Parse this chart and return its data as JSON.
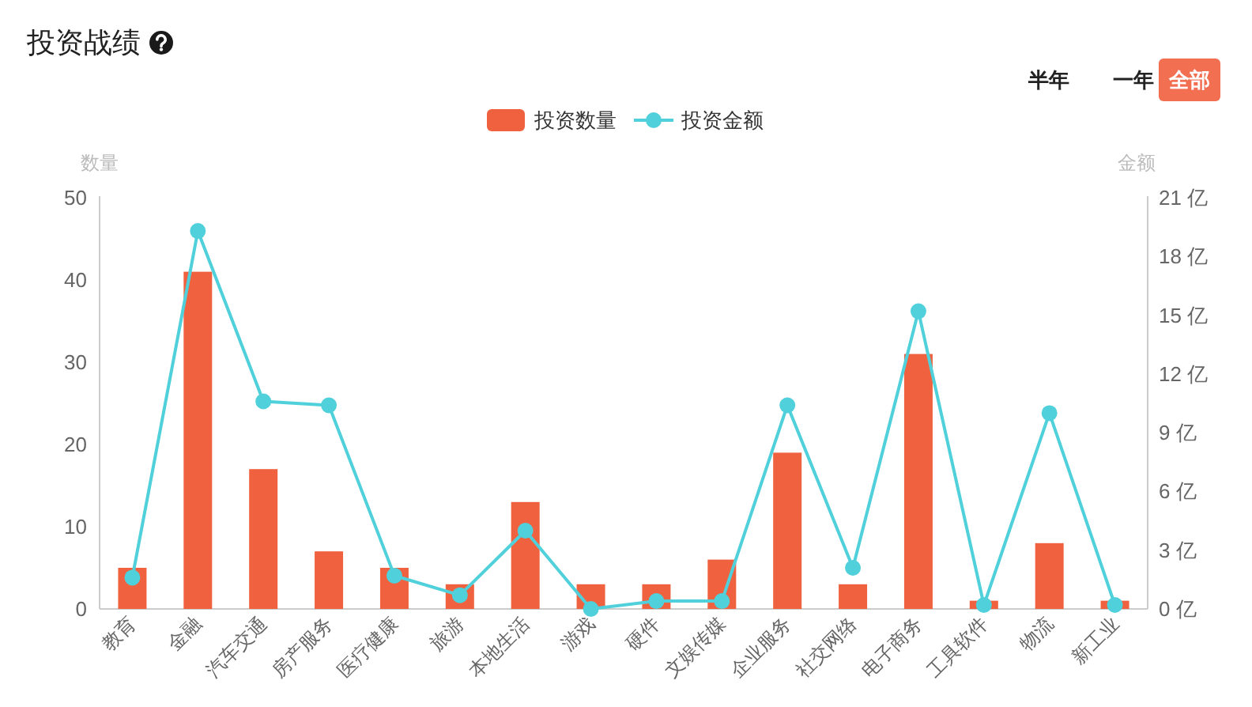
{
  "chart_data": {
    "type": "bar",
    "title": "投资战绩",
    "ylabel": "数量",
    "y2label": "金额",
    "categories": [
      "教育",
      "金融",
      "汽车交通",
      "房产服务",
      "医疗健康",
      "旅游",
      "本地生活",
      "游戏",
      "硬件",
      "文娱传媒",
      "企业服务",
      "社交网络",
      "电子商务",
      "工具软件",
      "物流",
      "新工业"
    ],
    "series": [
      {
        "name": "投资数量",
        "color": "#f0623f",
        "values": [
          5,
          41,
          17,
          7,
          5,
          3,
          13,
          3,
          3,
          6,
          19,
          3,
          31,
          1,
          8,
          1
        ]
      },
      {
        "name": "投资金额",
        "type": "line",
        "axis": "y2",
        "color": "#4fd0da",
        "values": [
          1.6,
          19.3,
          10.6,
          10.4,
          1.7,
          0.7,
          4.0,
          0.0,
          0.4,
          0.4,
          10.4,
          2.1,
          15.2,
          0.2,
          10.0,
          0.2
        ]
      }
    ],
    "ylim": [
      0,
      50
    ],
    "yticks": [
      0,
      10,
      20,
      30,
      40,
      50
    ],
    "y2lim": [
      0,
      21
    ],
    "y2ticks": [
      {
        "value": 0,
        "label": "0 亿"
      },
      {
        "value": 3,
        "label": "3 亿"
      },
      {
        "value": 6,
        "label": "6 亿"
      },
      {
        "value": 9,
        "label": "9 亿"
      },
      {
        "value": 12,
        "label": "12 亿"
      },
      {
        "value": 15,
        "label": "15 亿"
      },
      {
        "value": 18,
        "label": "18 亿"
      },
      {
        "value": 21,
        "label": "21 亿"
      }
    ],
    "legend": "top",
    "marker": "circle",
    "grid": false,
    "annotations": [
      "半年",
      "一年",
      "全部"
    ]
  }
}
